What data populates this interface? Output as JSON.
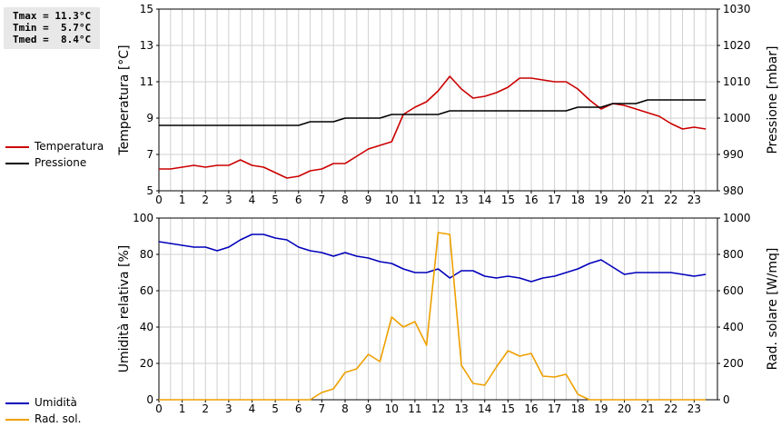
{
  "stats": {
    "tmax": "Tmax = 11.3°C",
    "tmin": "Tmin =  5.7°C",
    "tmed": "Tmed =  8.4°C"
  },
  "legend": {
    "temperatura": "Temperatura",
    "pressione": "Pressione",
    "umidita": "Umidità",
    "rad_sol": "Rad. sol."
  },
  "colors": {
    "temperatura": "#cc0000",
    "pressione": "#000000",
    "umidita": "#0000bb",
    "rad_sol": "#eea000",
    "grid": "#d0d0d0"
  },
  "chart_data": [
    {
      "type": "line",
      "x_ticks": [
        "0",
        "1",
        "2",
        "3",
        "4",
        "5",
        "6",
        "7",
        "8",
        "9",
        "10",
        "11",
        "12",
        "13",
        "14",
        "15",
        "16",
        "17",
        "18",
        "19",
        "20",
        "21",
        "22",
        "23"
      ],
      "xlim": [
        0,
        24
      ],
      "ylabel": "Temperatura [°C]",
      "ylim": [
        5,
        15
      ],
      "y_ticks": [
        "5",
        "7",
        "9",
        "11",
        "13",
        "15"
      ],
      "y2label": "Pressione [mbar]",
      "y2lim": [
        980,
        1030
      ],
      "y2_ticks": [
        "980",
        "990",
        "1000",
        "1010",
        "1020",
        "1030"
      ],
      "grid": true,
      "legend": "left",
      "series": [
        {
          "name": "Temperatura",
          "axis": "left",
          "x": [
            0,
            0.5,
            1,
            1.5,
            2,
            2.5,
            3,
            3.5,
            4,
            4.5,
            5,
            5.5,
            6,
            6.5,
            7,
            7.5,
            8,
            8.5,
            9,
            9.5,
            10,
            10.5,
            11,
            11.5,
            12,
            12.5,
            13,
            13.5,
            14,
            14.5,
            15,
            15.5,
            16,
            16.5,
            17,
            17.5,
            18,
            18.5,
            19,
            19.5,
            20,
            20.5,
            21,
            21.5,
            22,
            22.5,
            23,
            23.5
          ],
          "values": [
            6.2,
            6.2,
            6.3,
            6.4,
            6.3,
            6.4,
            6.4,
            6.7,
            6.4,
            6.3,
            6.0,
            5.7,
            5.8,
            6.1,
            6.2,
            6.5,
            6.5,
            6.9,
            7.3,
            7.5,
            7.7,
            9.2,
            9.6,
            9.9,
            10.5,
            11.3,
            10.6,
            10.1,
            10.2,
            10.4,
            10.7,
            11.2,
            11.2,
            11.1,
            11.0,
            11.0,
            10.6,
            10.0,
            9.5,
            9.8,
            9.7,
            9.5,
            9.3,
            9.1,
            8.7,
            8.4,
            8.5,
            8.4
          ]
        },
        {
          "name": "Pressione",
          "axis": "right",
          "x": [
            0,
            6,
            6.5,
            7,
            7.5,
            8,
            8.5,
            9,
            9.5,
            10,
            10.5,
            11,
            11.5,
            12,
            12.5,
            13,
            13.5,
            14,
            14.5,
            15,
            15.5,
            16,
            16.5,
            17,
            17.5,
            18,
            18.5,
            19,
            19.5,
            20,
            20.5,
            21,
            21.5,
            22,
            22.5,
            23,
            23.5
          ],
          "values": [
            998,
            998,
            999,
            999,
            999,
            1000,
            1000,
            1000,
            1000,
            1001,
            1001,
            1001,
            1001,
            1001,
            1002,
            1002,
            1002,
            1002,
            1002,
            1002,
            1002,
            1002,
            1002,
            1002,
            1002,
            1003,
            1003,
            1003,
            1004,
            1004,
            1004,
            1005,
            1005,
            1005,
            1005,
            1005,
            1005
          ]
        }
      ]
    },
    {
      "type": "line",
      "x_ticks": [
        "0",
        "1",
        "2",
        "3",
        "4",
        "5",
        "6",
        "7",
        "8",
        "9",
        "10",
        "11",
        "12",
        "13",
        "14",
        "15",
        "16",
        "17",
        "18",
        "19",
        "20",
        "21",
        "22",
        "23"
      ],
      "xlim": [
        0,
        24
      ],
      "ylabel": "Umidità relativa [%]",
      "ylim": [
        0,
        100
      ],
      "y_ticks": [
        "0",
        "20",
        "40",
        "60",
        "80",
        "100"
      ],
      "y2label": "Rad. solare [W/mq]",
      "y2lim": [
        0,
        1000
      ],
      "y2_ticks": [
        "0",
        "200",
        "400",
        "600",
        "800",
        "1000"
      ],
      "grid": true,
      "legend": "left",
      "series": [
        {
          "name": "Umidità",
          "axis": "left",
          "x": [
            0,
            0.5,
            1,
            1.5,
            2,
            2.5,
            3,
            3.5,
            4,
            4.5,
            5,
            5.5,
            6,
            6.5,
            7,
            7.5,
            8,
            8.5,
            9,
            9.5,
            10,
            10.5,
            11,
            11.5,
            12,
            12.5,
            13,
            13.5,
            14,
            14.5,
            15,
            15.5,
            16,
            16.5,
            17,
            17.5,
            18,
            18.5,
            19,
            19.5,
            20,
            20.5,
            21,
            21.5,
            22,
            22.5,
            23,
            23.5
          ],
          "values": [
            87,
            86,
            85,
            84,
            84,
            82,
            84,
            88,
            91,
            91,
            89,
            88,
            84,
            82,
            81,
            79,
            81,
            79,
            78,
            76,
            75,
            72,
            70,
            70,
            72,
            67,
            71,
            71,
            68,
            67,
            68,
            67,
            65,
            67,
            68,
            70,
            72,
            75,
            77,
            73,
            69,
            70,
            70,
            70,
            70,
            69,
            68,
            69
          ]
        },
        {
          "name": "Rad. sol.",
          "axis": "right",
          "x": [
            0,
            6,
            6.5,
            7,
            7.5,
            8,
            8.5,
            9,
            9.5,
            10,
            10.5,
            11,
            11.5,
            12,
            12.5,
            13,
            13.5,
            14,
            14.5,
            15,
            15.5,
            16,
            16.5,
            17,
            17.5,
            18,
            18.5,
            19,
            23.5
          ],
          "values": [
            0,
            0,
            0,
            40,
            60,
            150,
            170,
            250,
            210,
            455,
            400,
            430,
            300,
            920,
            910,
            190,
            90,
            80,
            180,
            270,
            240,
            255,
            130,
            125,
            140,
            30,
            0,
            0,
            0
          ]
        }
      ]
    }
  ]
}
